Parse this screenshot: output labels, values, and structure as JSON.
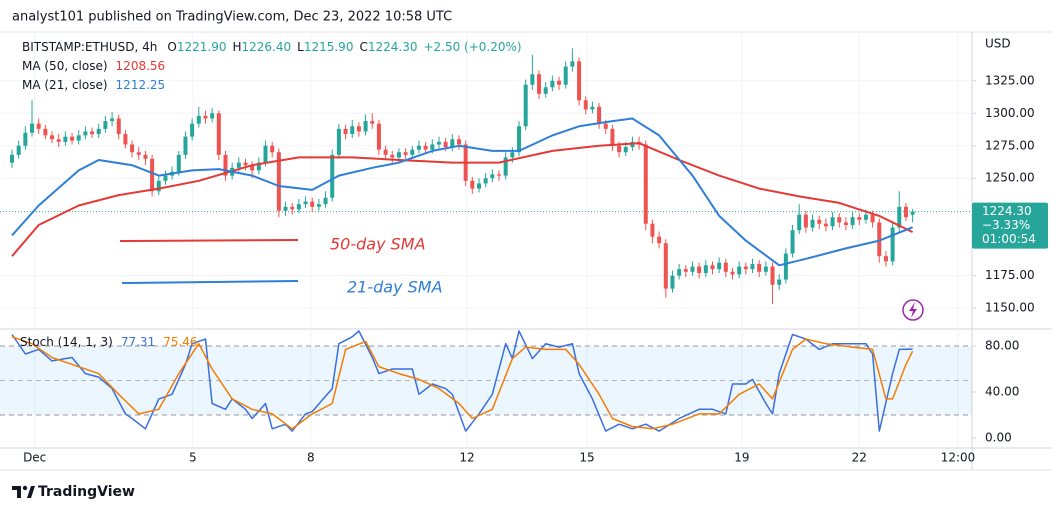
{
  "header": {
    "publisher": "analyst101 published on TradingView.com, Dec 23, 2022 10:58 UTC"
  },
  "chart_data": [
    {
      "type": "candlestick",
      "title": "BITSTAMP:ETHUSD, 4h",
      "ohlc_legend": [
        {
          "key": "O",
          "value": "1221.90"
        },
        {
          "key": "H",
          "value": "1226.40"
        },
        {
          "key": "L",
          "value": "1215.90"
        },
        {
          "key": "C",
          "value": "1224.30"
        }
      ],
      "change": "+2.50 (+0.20%)",
      "y_unit": "USD",
      "up_color": "#26a69a",
      "down_color": "#ef5350",
      "open": [
        1262,
        1268,
        1275,
        1285,
        1292,
        1288,
        1283,
        1280,
        1278,
        1282,
        1279,
        1283,
        1286,
        1284,
        1288,
        1294,
        1296,
        1284,
        1276,
        1270,
        1268,
        1265,
        1240,
        1248,
        1252,
        1255,
        1268,
        1282,
        1292,
        1298,
        1296,
        1300,
        1268,
        1252,
        1258,
        1262,
        1260,
        1256,
        1262,
        1275,
        1270,
        1225,
        1228,
        1226,
        1230,
        1232,
        1228,
        1230,
        1235,
        1268,
        1288,
        1284,
        1290,
        1286,
        1294,
        1292,
        1272,
        1268,
        1266,
        1270,
        1268,
        1272,
        1275,
        1272,
        1276,
        1278,
        1274,
        1280,
        1276,
        1248,
        1242,
        1246,
        1250,
        1253,
        1252,
        1266,
        1270,
        1290,
        1322,
        1330,
        1315,
        1320,
        1325,
        1322,
        1336,
        1340,
        1310,
        1303,
        1305,
        1292,
        1288,
        1275,
        1270,
        1274,
        1278,
        1276,
        1215,
        1205,
        1200,
        1165,
        1175,
        1180,
        1178,
        1182,
        1177,
        1183,
        1180,
        1185,
        1178,
        1176,
        1182,
        1180,
        1184,
        1178,
        1182,
        1168,
        1172,
        1192,
        1210,
        1222,
        1212,
        1218,
        1215,
        1213,
        1220,
        1216,
        1214,
        1220,
        1218,
        1222,
        1216,
        1190,
        1186,
        1212,
        1228,
        1221.9
      ],
      "high": [
        1272,
        1279,
        1290,
        1310,
        1296,
        1291,
        1286,
        1284,
        1286,
        1285,
        1287,
        1290,
        1289,
        1292,
        1298,
        1301,
        1299,
        1287,
        1279,
        1274,
        1271,
        1268,
        1252,
        1256,
        1259,
        1271,
        1286,
        1296,
        1305,
        1302,
        1304,
        1302,
        1271,
        1262,
        1266,
        1265,
        1263,
        1266,
        1279,
        1278,
        1273,
        1232,
        1231,
        1234,
        1236,
        1235,
        1234,
        1240,
        1272,
        1292,
        1291,
        1295,
        1293,
        1299,
        1300,
        1295,
        1275,
        1271,
        1273,
        1273,
        1275,
        1279,
        1278,
        1280,
        1282,
        1281,
        1284,
        1283,
        1279,
        1251,
        1250,
        1254,
        1257,
        1256,
        1270,
        1274,
        1294,
        1326,
        1345,
        1333,
        1324,
        1329,
        1328,
        1340,
        1350,
        1343,
        1313,
        1309,
        1308,
        1295,
        1291,
        1278,
        1278,
        1282,
        1282,
        1279,
        1218,
        1209,
        1203,
        1179,
        1184,
        1183,
        1186,
        1185,
        1187,
        1186,
        1189,
        1188,
        1181,
        1186,
        1185,
        1188,
        1187,
        1186,
        1185,
        1176,
        1196,
        1214,
        1230,
        1225,
        1222,
        1221,
        1219,
        1224,
        1223,
        1220,
        1224,
        1223,
        1226,
        1225,
        1219,
        1194,
        1216,
        1240,
        1231,
        1226.4
      ],
      "low": [
        1258,
        1265,
        1272,
        1282,
        1284,
        1280,
        1277,
        1274,
        1275,
        1276,
        1276,
        1280,
        1281,
        1281,
        1285,
        1290,
        1280,
        1273,
        1266,
        1264,
        1260,
        1236,
        1237,
        1245,
        1249,
        1252,
        1265,
        1279,
        1289,
        1292,
        1293,
        1264,
        1248,
        1249,
        1255,
        1256,
        1250,
        1253,
        1259,
        1266,
        1220,
        1221,
        1222,
        1223,
        1227,
        1224,
        1225,
        1227,
        1232,
        1265,
        1280,
        1281,
        1282,
        1283,
        1288,
        1268,
        1264,
        1262,
        1263,
        1265,
        1265,
        1269,
        1269,
        1269,
        1273,
        1271,
        1271,
        1272,
        1244,
        1238,
        1239,
        1243,
        1247,
        1248,
        1249,
        1262,
        1267,
        1287,
        1318,
        1311,
        1312,
        1317,
        1318,
        1319,
        1332,
        1306,
        1299,
        1300,
        1288,
        1284,
        1271,
        1266,
        1267,
        1271,
        1272,
        1210,
        1200,
        1196,
        1158,
        1162,
        1172,
        1174,
        1175,
        1173,
        1174,
        1176,
        1177,
        1174,
        1172,
        1173,
        1176,
        1177,
        1174,
        1175,
        1153,
        1164,
        1169,
        1189,
        1207,
        1208,
        1209,
        1211,
        1209,
        1210,
        1212,
        1210,
        1211,
        1214,
        1215,
        1212,
        1185,
        1182,
        1183,
        1209,
        1217,
        1215.9
      ],
      "close": [
        1268,
        1275,
        1285,
        1292,
        1288,
        1283,
        1280,
        1278,
        1282,
        1279,
        1283,
        1286,
        1284,
        1288,
        1294,
        1296,
        1284,
        1276,
        1270,
        1268,
        1265,
        1240,
        1248,
        1252,
        1255,
        1268,
        1282,
        1292,
        1298,
        1296,
        1300,
        1268,
        1252,
        1258,
        1262,
        1260,
        1256,
        1262,
        1275,
        1270,
        1225,
        1228,
        1226,
        1230,
        1232,
        1228,
        1230,
        1235,
        1268,
        1288,
        1284,
        1290,
        1286,
        1294,
        1292,
        1272,
        1268,
        1266,
        1270,
        1268,
        1272,
        1275,
        1272,
        1276,
        1278,
        1274,
        1280,
        1276,
        1248,
        1242,
        1246,
        1250,
        1253,
        1252,
        1266,
        1270,
        1290,
        1322,
        1330,
        1315,
        1320,
        1325,
        1322,
        1336,
        1340,
        1310,
        1303,
        1305,
        1292,
        1288,
        1275,
        1270,
        1274,
        1278,
        1276,
        1215,
        1205,
        1200,
        1165,
        1175,
        1180,
        1178,
        1182,
        1177,
        1183,
        1180,
        1185,
        1178,
        1176,
        1182,
        1180,
        1184,
        1178,
        1182,
        1168,
        1172,
        1192,
        1210,
        1222,
        1212,
        1218,
        1215,
        1213,
        1220,
        1216,
        1214,
        1220,
        1218,
        1222,
        1216,
        1190,
        1186,
        1212,
        1228,
        1220,
        1224.3
      ],
      "series": [
        {
          "name": "MA (50, close)",
          "color": "#e53935",
          "value_label": "1208.56",
          "x": [
            0,
            4,
            10,
            16,
            22,
            28,
            36,
            43,
            51,
            58,
            66,
            73,
            81,
            88,
            94,
            100,
            106,
            112,
            118,
            124,
            130,
            135
          ],
          "values": [
            1190,
            1214,
            1229,
            1237,
            1242,
            1248,
            1260,
            1266,
            1266,
            1264,
            1262,
            1262,
            1271,
            1275,
            1277,
            1264,
            1252,
            1242,
            1236,
            1231,
            1221,
            1208.56
          ]
        },
        {
          "name": "MA (21, close)",
          "color": "#2f7ed8",
          "value_label": "1212.25",
          "x": [
            0,
            4,
            10,
            13,
            18,
            22,
            27,
            31,
            36,
            40,
            45,
            49,
            54,
            58,
            63,
            67,
            72,
            76,
            81,
            85,
            90,
            93,
            97,
            102,
            106,
            110,
            115,
            119,
            125,
            130,
            135
          ],
          "values": [
            1206,
            1229,
            1256,
            1264,
            1260,
            1252,
            1256,
            1257,
            1252,
            1244,
            1241,
            1252,
            1258,
            1262,
            1271,
            1275,
            1271,
            1271,
            1283,
            1290,
            1294,
            1296,
            1283,
            1252,
            1221,
            1202,
            1183,
            1188,
            1196,
            1202,
            1212.25
          ]
        }
      ],
      "ylim": [
        1134.7,
        1361.8
      ],
      "yticks": [
        {
          "value": 1150,
          "label": "1150.00"
        },
        {
          "value": 1175,
          "label": "1175.00"
        },
        {
          "value": 1250,
          "label": "1250.00"
        },
        {
          "value": 1275,
          "label": "1275.00"
        },
        {
          "value": 1300,
          "label": "1300.00"
        },
        {
          "value": 1325,
          "label": "1325.00"
        }
      ],
      "xlim": [
        -1.8,
        143.9
      ],
      "xticks": [
        {
          "value": 3.4,
          "label": "Dec"
        },
        {
          "value": 27.1,
          "label": "5"
        },
        {
          "value": 44.8,
          "label": "8"
        },
        {
          "value": 68.2,
          "label": "12"
        },
        {
          "value": 86.2,
          "label": "15"
        },
        {
          "value": 109.4,
          "label": "19"
        },
        {
          "value": 127,
          "label": "22"
        },
        {
          "value": 141.8,
          "label": "12:00"
        }
      ],
      "last_price": {
        "value": 1224.3,
        "label": "1224.30"
      },
      "change_pct": "−3.33%",
      "countdown": "01:00:54",
      "annotations": [
        {
          "text": "50-day SMA",
          "color": "#e53935"
        },
        {
          "text": "21-day SMA",
          "color": "#2f7ed8"
        }
      ],
      "grid": true
    },
    {
      "type": "line",
      "title": "Stoch (14, 1, 3)",
      "series": [
        {
          "color": "#3b6fe0",
          "value_label": "77.31",
          "x": [
            0,
            2,
            4,
            6,
            9,
            11,
            13,
            15,
            17,
            18,
            20,
            22,
            24,
            26,
            27,
            29,
            30,
            32,
            33,
            35,
            36,
            38,
            39,
            41,
            42,
            44,
            45,
            48,
            49,
            51,
            52,
            54,
            55,
            57,
            60,
            61,
            63,
            65,
            66,
            68,
            70,
            72,
            74,
            75,
            76,
            78,
            80,
            82,
            84,
            85,
            87,
            89,
            91,
            93,
            95,
            97,
            100,
            103,
            105,
            107,
            108,
            110,
            111,
            113,
            114,
            115,
            117,
            119,
            121,
            123,
            126,
            128,
            129,
            130,
            132,
            133,
            135
          ],
          "values": [
            90,
            73,
            77,
            67,
            70,
            56,
            53,
            43,
            21,
            17,
            8,
            34,
            38,
            64,
            82,
            86,
            30,
            25,
            34,
            25,
            17,
            30,
            8,
            12,
            6,
            21,
            23,
            43,
            82,
            88,
            93,
            70,
            56,
            60,
            60,
            38,
            47,
            43,
            38,
            6,
            21,
            38,
            82,
            69,
            93,
            69,
            82,
            79,
            82,
            56,
            34,
            6,
            12,
            8,
            12,
            6,
            17,
            25,
            25,
            21,
            47,
            47,
            51,
            30,
            21,
            56,
            90,
            86,
            77,
            82,
            82,
            82,
            73,
            6,
            56,
            77,
            77.31
          ]
        },
        {
          "color": "#f57c00",
          "value_label": "75.46",
          "x": [
            0,
            3,
            6,
            9,
            13,
            16,
            19,
            22,
            25,
            28,
            30,
            33,
            36,
            39,
            42,
            45,
            48,
            50,
            53,
            55,
            58,
            61,
            64,
            67,
            69,
            72,
            75,
            77,
            80,
            83,
            85,
            88,
            90,
            93,
            96,
            99,
            103,
            106,
            109,
            112,
            114,
            117,
            119,
            122,
            126,
            129,
            131,
            132,
            134,
            135
          ],
          "values": [
            88,
            82,
            70,
            64,
            56,
            38,
            21,
            25,
            56,
            82,
            60,
            34,
            25,
            21,
            8,
            21,
            30,
            77,
            84,
            62,
            56,
            51,
            43,
            30,
            17,
            25,
            69,
            79,
            77,
            77,
            64,
            38,
            17,
            10,
            8,
            12,
            21,
            21,
            38,
            47,
            34,
            77,
            86,
            82,
            79,
            77,
            34,
            34,
            64,
            75.46
          ]
        }
      ],
      "ylim": [
        -7.8,
        93.9
      ],
      "yticks": [
        {
          "value": 0,
          "label": "0.00"
        },
        {
          "value": 40,
          "label": "40.00"
        },
        {
          "value": 80,
          "label": "80.00"
        }
      ],
      "band": [
        20,
        80
      ],
      "midline": 50
    }
  ],
  "footer": {
    "brand": "TradingView"
  }
}
